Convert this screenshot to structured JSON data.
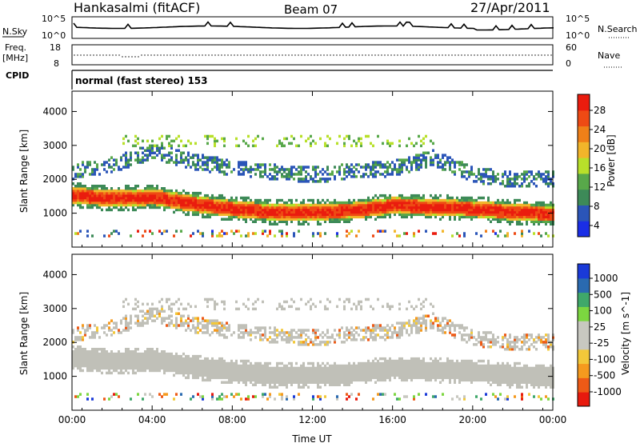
{
  "header": {
    "station": "Hankasalmi (fitACF)",
    "beam": "Beam 07",
    "date": "27/Apr/2011"
  },
  "noise_panel": {
    "left_label": "N.Sky",
    "right_label": "N.Search",
    "ticks": [
      "10^5",
      "10^0"
    ],
    "right_ticks": [
      "10^5",
      "10^0"
    ]
  },
  "freq_panel": {
    "left_label_1": "Freq.",
    "left_label_2": "[MHz]",
    "left_ticks": [
      "18",
      "8"
    ],
    "right_label": "Nave",
    "right_ticks": [
      "60",
      "0"
    ]
  },
  "cpid": {
    "label": "CPID",
    "value": "normal (fast stereo) 153"
  },
  "colors": {
    "power_scale": [
      "#1a2ee6",
      "#2b55b8",
      "#3d8a58",
      "#58a84a",
      "#b8e02a",
      "#f2b52a",
      "#f08018",
      "#ee4a14",
      "#ea1c0e"
    ],
    "velocity_scale": [
      "#e81a0e",
      "#ee5a16",
      "#f59a1e",
      "#f2c83a",
      "#c8c8c0",
      "#c8c8c0",
      "#7cd640",
      "#3fa86a",
      "#2a6ab0",
      "#1a3ad8"
    ],
    "ground_scatter": "#c0c0b8"
  },
  "chart_data": [
    {
      "type": "heatmap",
      "title": "",
      "ylabel": "Slant Range [km]",
      "yticks": [
        "1000",
        "2000",
        "3000",
        "4000"
      ],
      "ylim": [
        0,
        4600
      ],
      "xlim": [
        0,
        24
      ],
      "colorbar": {
        "label": "Power [dB]",
        "ticks": [
          "28",
          "24",
          "20",
          "16",
          "12",
          "8",
          "4"
        ],
        "range": [
          0,
          32
        ]
      },
      "features": [
        {
          "name": "main band",
          "x": [
            0,
            2,
            4,
            6,
            8,
            10,
            12,
            14,
            16,
            18,
            20,
            22,
            24
          ],
          "y": [
            1500,
            1400,
            1450,
            1250,
            1100,
            1000,
            1000,
            1050,
            1200,
            1150,
            1100,
            1000,
            950
          ]
        },
        {
          "name": "upper echoes",
          "x": [
            0,
            2,
            4,
            6,
            8,
            10,
            12,
            14,
            16,
            18,
            20,
            22,
            24
          ],
          "y": [
            2200,
            2400,
            2800,
            2500,
            2300,
            2200,
            2100,
            2200,
            2300,
            2600,
            2100,
            1950,
            2000
          ]
        }
      ]
    },
    {
      "type": "heatmap",
      "title": "",
      "ylabel": "Slant Range [km]",
      "yticks": [
        "1000",
        "2000",
        "3000",
        "4000"
      ],
      "ylim": [
        0,
        4600
      ],
      "xlim": [
        0,
        24
      ],
      "xticks": [
        "00:00",
        "04:00",
        "08:00",
        "12:00",
        "16:00",
        "20:00",
        "00:00"
      ],
      "xlabel": "Time UT",
      "colorbar": {
        "label": "Velocity [m s^-1]",
        "ticks": [
          "1000",
          "500",
          "100",
          "25",
          "-25",
          "-100",
          "-500",
          "-1000"
        ]
      },
      "features": [
        {
          "name": "ground scatter band",
          "x": [
            0,
            2,
            4,
            6,
            8,
            10,
            12,
            14,
            16,
            18,
            20,
            22,
            24
          ],
          "y": [
            1500,
            1400,
            1450,
            1250,
            1100,
            1000,
            1000,
            1050,
            1200,
            1150,
            1100,
            1000,
            950
          ]
        }
      ]
    }
  ]
}
